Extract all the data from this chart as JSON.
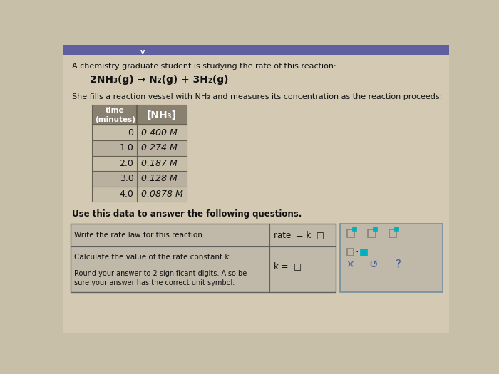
{
  "bg_color": "#c8bfa8",
  "page_color": "#d4cab4",
  "top_bar_color": "#6060a0",
  "title_text": "A chemistry graduate student is studying the rate of this reaction:",
  "reaction_text": "2NH₃(g) → N₂(g) + 3H₂(g)",
  "subtitle_text": "She fills a reaction vessel with NH₃ and measures its concentration as the reaction proceeds:",
  "col1_header": "time\n(minutes)",
  "col2_header": "[NH₃]",
  "table_data": [
    [
      "0",
      "0.400 M"
    ],
    [
      "1.0",
      "0.274 M"
    ],
    [
      "2.0",
      "0.187 M"
    ],
    [
      "3.0",
      "0.128 M"
    ],
    [
      "4.0",
      "0.0878 M"
    ]
  ],
  "use_text": "Use this data to answer the following questions.",
  "q1_left": "Write the rate law for this reaction.",
  "q1_right": "rate  = k  □",
  "q2_left_line1": "Calculate the value of the rate constant k.",
  "q2_right": "k =  □",
  "q2_note": "Round your answer to 2 significant digits. Also be\nsure your answer has the correct unit symbol.",
  "text_color": "#111111",
  "table_header_bg": "#8a8070",
  "table_row_bg1": "#c8bfaa",
  "table_row_bg2": "#bab0a0",
  "table_border": "#666050",
  "qa_box_bg": "#c0b8a8",
  "qa_border": "#606060",
  "toolbar_bg": "#c0b8a8",
  "toolbar_border": "#7090a0",
  "icon_color": "#00b0c0",
  "icon_outline": "#e0ddd0",
  "x_color": "#4060a0",
  "s_color": "#4060a0",
  "q_color": "#4060a0"
}
